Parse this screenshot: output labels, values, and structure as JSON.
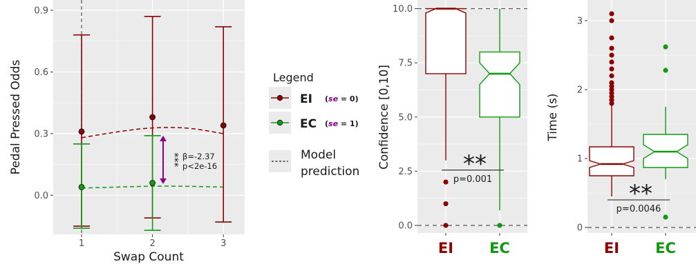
{
  "colors": {
    "ei": "#8b0000",
    "ec": "#119911",
    "annotation": "#8b008b",
    "panel_bg": "#ebebeb",
    "grid": "#ffffff"
  },
  "legend": {
    "title": "Legend",
    "entries": [
      {
        "label": "EI",
        "se_prefix": "(",
        "se_var": "se",
        "se_suffix": " = 0)",
        "color_key": "ei"
      },
      {
        "label": "EC",
        "se_prefix": "(",
        "se_var": "se",
        "se_suffix": " = 1)",
        "color_key": "ec"
      }
    ],
    "model_label_line1": "Model",
    "model_label_line2": "prediction"
  },
  "chart_data": [
    {
      "type": "scatter",
      "xlabel": "Swap Count",
      "ylabel": "Pedal Pressed Odds",
      "x_ticks": [
        "1",
        "2",
        "3"
      ],
      "y_ticks": [
        "0.0",
        "0.3",
        "0.6",
        "0.9"
      ],
      "xlim": [
        0.6,
        3.3
      ],
      "ylim": [
        -0.19,
        0.95
      ],
      "grid": true,
      "reference_vline_x": 1,
      "series": [
        {
          "name": "EI",
          "color_key": "ei",
          "points": [
            {
              "x": 1,
              "y": 0.31,
              "lo": -0.15,
              "hi": 0.78
            },
            {
              "x": 2,
              "y": 0.38,
              "lo": -0.11,
              "hi": 0.87
            },
            {
              "x": 3,
              "y": 0.34,
              "lo": -0.13,
              "hi": 0.82
            }
          ],
          "model_curve": {
            "x": [
              1,
              1.5,
              2,
              2.5,
              3
            ],
            "y": [
              0.28,
              0.31,
              0.33,
              0.33,
              0.3
            ]
          }
        },
        {
          "name": "EC",
          "color_key": "ec",
          "points": [
            {
              "x": 1,
              "y": 0.04,
              "lo": -0.16,
              "hi": 0.25
            },
            {
              "x": 2,
              "y": 0.06,
              "lo": -0.17,
              "hi": 0.29
            }
          ],
          "model_curve": {
            "x": [
              1,
              1.5,
              2,
              2.5,
              3
            ],
            "y": [
              0.035,
              0.04,
              0.045,
              0.044,
              0.04
            ]
          }
        }
      ],
      "annotation": {
        "x": 2.15,
        "y_from": 0.055,
        "y_to": 0.29,
        "stars": "***",
        "line1": "β=-2.37",
        "line2": "p<2e-16"
      }
    },
    {
      "type": "box",
      "ylabel": "Confidence [0,10]",
      "categories": [
        "EI",
        "EC"
      ],
      "y_ticks": [
        "0.0",
        "2.5",
        "5.0",
        "7.5",
        "10.0"
      ],
      "ylim": [
        -0.35,
        10.4
      ],
      "dashed_lines_y": [
        0,
        10
      ],
      "notched": true,
      "boxes": [
        {
          "category": "EI",
          "color_key": "ei",
          "min": 3,
          "q1": 7,
          "median": 10,
          "q3": 10,
          "max": 10,
          "notch_lo": 9.8,
          "notch_hi": 10,
          "outliers": [
            2,
            1,
            0
          ]
        },
        {
          "category": "EC",
          "color_key": "ec",
          "min": 0.7,
          "q1": 5,
          "median": 7,
          "q3": 8,
          "max": 10,
          "notch_lo": 6.5,
          "notch_hi": 7.5,
          "outliers": [
            0
          ]
        }
      ],
      "significance": {
        "stars": "**",
        "p_text": "p=0.001",
        "y": 2.55
      }
    },
    {
      "type": "box",
      "ylabel": "Time (s)",
      "categories": [
        "EI",
        "EC"
      ],
      "y_ticks": [
        "0",
        "1",
        "2",
        "3"
      ],
      "ylim": [
        -0.08,
        3.3
      ],
      "dashed_lines_y": [
        0
      ],
      "notched": true,
      "boxes": [
        {
          "category": "EI",
          "color_key": "ei",
          "min": 0.45,
          "q1": 0.75,
          "median": 0.92,
          "q3": 1.17,
          "max": 1.77,
          "notch_lo": 0.87,
          "notch_hi": 0.97,
          "outliers": [
            1.8,
            1.85,
            1.9,
            1.95,
            2.0,
            2.05,
            2.1,
            2.2,
            2.3,
            2.4,
            2.5,
            2.6,
            2.75,
            3.0,
            3.1
          ]
        },
        {
          "category": "EC",
          "color_key": "ec",
          "min": 0.7,
          "q1": 0.87,
          "median": 1.1,
          "q3": 1.35,
          "max": 1.75,
          "notch_lo": 1.0,
          "notch_hi": 1.2,
          "outliers": [
            2.62,
            2.28,
            0.15
          ]
        }
      ],
      "significance": {
        "stars": "**",
        "p_text": "p=0.0046",
        "y": 0.4
      }
    }
  ]
}
